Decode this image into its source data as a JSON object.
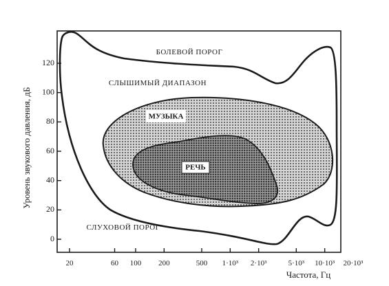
{
  "y_axis": {
    "title": "Уровень звукового давления, дБ",
    "ticks": [
      {
        "value": 0,
        "label": "0"
      },
      {
        "value": 20,
        "label": "20"
      },
      {
        "value": 40,
        "label": "40"
      },
      {
        "value": 60,
        "label": "60"
      },
      {
        "value": 80,
        "label": "80"
      },
      {
        "value": 100,
        "label": "100"
      },
      {
        "value": 120,
        "label": "120"
      }
    ]
  },
  "x_axis": {
    "title": "Частота, Гц",
    "ticks": [
      {
        "value": 20,
        "label": "20"
      },
      {
        "value": 60,
        "label": "60"
      },
      {
        "value": 100,
        "label": "100"
      },
      {
        "value": 200,
        "label": "200"
      },
      {
        "value": 500,
        "label": "500"
      },
      {
        "value": 1000,
        "label": "1·10³"
      },
      {
        "value": 2000,
        "label": "2·10³"
      },
      {
        "value": 5000,
        "label": "5·10³"
      },
      {
        "value": 10000,
        "label": "10·10³"
      },
      {
        "value": 20000,
        "label": "20·10³"
      }
    ]
  },
  "labels": {
    "pain_threshold": "БОЛЕВОЙ ПОРОГ",
    "audible_range": "СЛЫШИМЫЙ ДИАПАЗОН",
    "music": "МУЗЫКА",
    "speech": "РЕЧЬ",
    "hearing_threshold": "СЛУХОВОЙ ПОРОГ"
  },
  "colors": {
    "ink": "#1a1a1a",
    "music_fill": "#8c8c8c",
    "speech_fill": "#5a5a5a"
  }
}
